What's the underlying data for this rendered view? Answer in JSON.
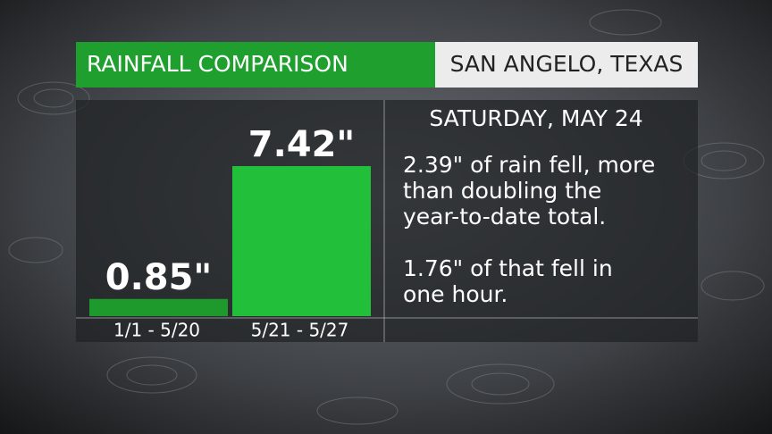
{
  "chart_data": {
    "type": "bar",
    "title": "RAINFALL COMPARISON",
    "subtitle": "SAN ANGELO, TEXAS",
    "categories": [
      "1/1 - 5/20",
      "5/21 - 5/27"
    ],
    "values": [
      0.85,
      7.42
    ],
    "value_labels": [
      "0.85\"",
      "7.42\""
    ],
    "colors": [
      "#1e9a2c",
      "#21bf3a"
    ],
    "annotations": [
      "SATURDAY, MAY 24"
    ],
    "notes": [
      [
        "2.39\" of rain fell, more",
        "than doubling the",
        "year-to-date total."
      ],
      [
        "1.76\" of that fell in",
        "one hour."
      ]
    ]
  }
}
